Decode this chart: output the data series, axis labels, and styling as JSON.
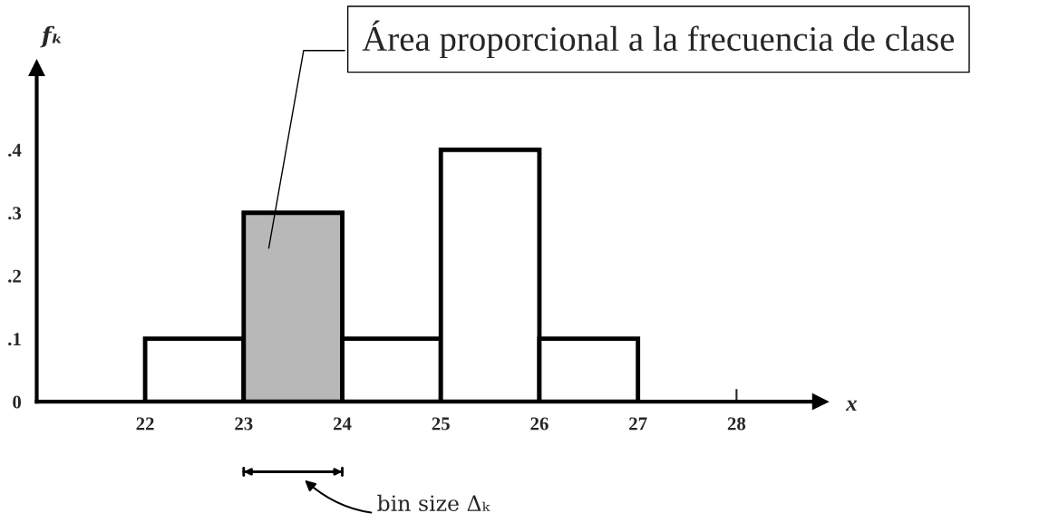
{
  "chart_data": {
    "type": "histogram",
    "bins": [
      22,
      23,
      24,
      25,
      26,
      27
    ],
    "values": [
      0.1,
      0.3,
      0.1,
      0.4,
      0.1
    ],
    "colors": [
      "#ffffff",
      "#b8b8b8",
      "#ffffff",
      "#ffffff",
      "#ffffff"
    ],
    "xlabel": "x",
    "ylabel": "fₖ",
    "xlim": [
      20.9,
      28.85
    ],
    "ylim": [
      0,
      0.53
    ],
    "xticks": [
      22,
      23,
      24,
      25,
      26,
      27,
      28
    ],
    "yticks": [
      {
        "value": 0,
        "label": "0"
      },
      {
        "value": 0.1,
        "label": ".1"
      },
      {
        "value": 0.2,
        "label": ".2"
      },
      {
        "value": 0.3,
        "label": ".3"
      },
      {
        "value": 0.4,
        "label": ".4"
      }
    ],
    "annotations": [
      "Área proporcional a la frecuencia de clase",
      "bin size Δₖ"
    ],
    "grid": false
  }
}
